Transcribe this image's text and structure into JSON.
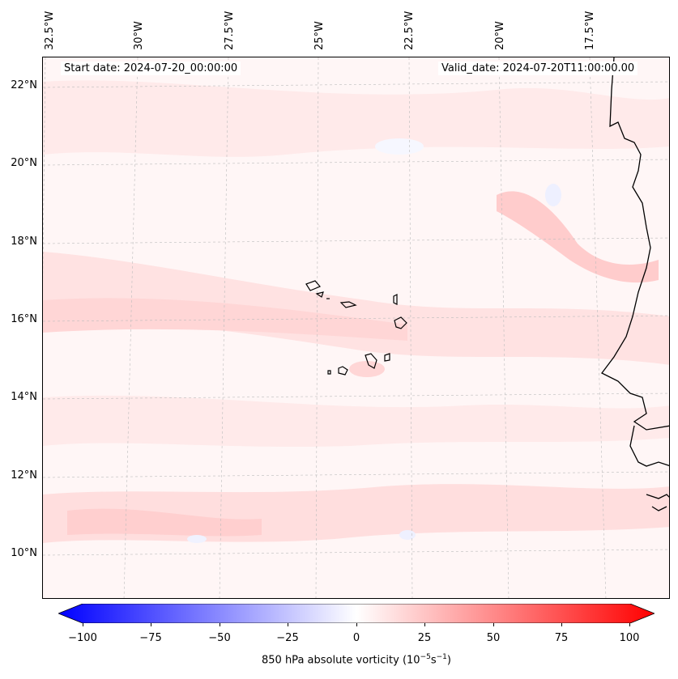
{
  "map": {
    "start_date": "Start date: 2024-07-20_00:00:00",
    "valid_date": "Valid_date: 2024-07-20T11:00:00.00",
    "lon_labels": [
      "32.5°W",
      "30°W",
      "27.5°W",
      "25°W",
      "22.5°W",
      "20°W",
      "17.5°W"
    ],
    "lat_labels": [
      "22°N",
      "20°N",
      "18°N",
      "16°N",
      "14°N",
      "12°N",
      "10°N"
    ],
    "field": "850 hPa absolute vorticity",
    "colors": {
      "negative_max": "#0000ff",
      "neutral": "#ffffff",
      "positive_max": "#ff0000",
      "coast": "#000000",
      "grid": "#b0b0b0"
    }
  },
  "colorbar": {
    "ticks": [
      "−100",
      "−75",
      "−50",
      "−25",
      "0",
      "25",
      "50",
      "75",
      "100"
    ],
    "min": -100,
    "max": 100,
    "label_prefix": "850 hPa absolute vorticity (10",
    "label_exp1": "−5",
    "label_mid": "s",
    "label_exp2": "−1",
    "label_suffix": ")"
  }
}
